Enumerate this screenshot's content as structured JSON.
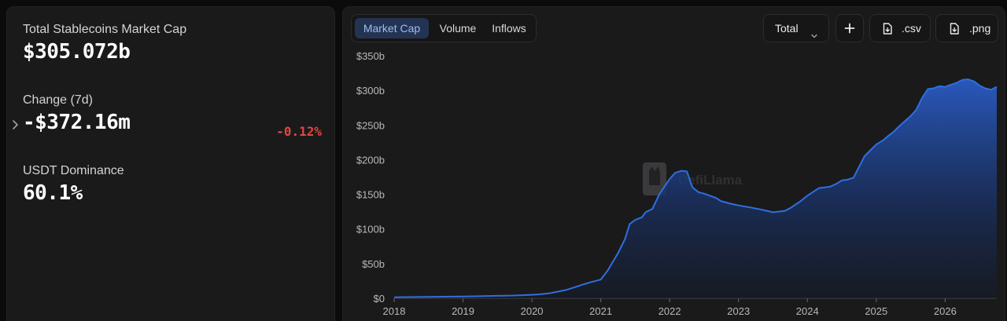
{
  "stats": {
    "total": {
      "label": "Total Stablecoins Market Cap",
      "value": "$305.072b"
    },
    "change": {
      "label": "Change (7d)",
      "value": "-$372.16m",
      "percent": "-0.12%"
    },
    "dominance": {
      "label": "USDT Dominance",
      "value": "60.1%"
    }
  },
  "tabs": {
    "market_cap": "Market Cap",
    "volume": "Volume",
    "inflows": "Inflows"
  },
  "toolbar": {
    "total_label": "Total",
    "csv_label": ".csv",
    "png_label": ".png"
  },
  "watermark": "DefiLlama",
  "colors": {
    "accent": "#2f6fe0",
    "negative": "#e0483e",
    "panel": "#1a1a1b"
  },
  "icons": {
    "chevron": "chevron-right-icon",
    "select": "chevron-down-icon",
    "add": "plus-icon",
    "download": "file-download-icon"
  },
  "chart_data": {
    "type": "area",
    "y_ticks": [
      "$0",
      "$50b",
      "$100b",
      "$150b",
      "$200b",
      "$250b",
      "$300b",
      "$350b"
    ],
    "x_ticks": [
      "2018",
      "2019",
      "2020",
      "2021",
      "2022",
      "2023",
      "2024",
      "2025",
      "2026"
    ],
    "ylim": [
      0,
      350
    ],
    "xlim": [
      2018.0,
      2026.75
    ],
    "grid": false,
    "series": [
      {
        "x": [
          2018.0,
          2018.5,
          2019.0,
          2019.25,
          2019.5,
          2019.75,
          2020.0,
          2020.1,
          2020.25,
          2020.5,
          2020.75,
          2020.85,
          2021.0,
          2021.1,
          2021.25,
          2021.35,
          2021.42,
          2021.5,
          2021.6,
          2021.65,
          2021.75,
          2021.85,
          2022.0,
          2022.08,
          2022.17,
          2022.25,
          2022.33,
          2022.42,
          2022.5,
          2022.67,
          2022.75,
          2022.9,
          2023.0,
          2023.17,
          2023.33,
          2023.5,
          2023.58,
          2023.67,
          2023.75,
          2023.9,
          2024.0,
          2024.17,
          2024.33,
          2024.42,
          2024.5,
          2024.58,
          2024.67,
          2024.83,
          2025.0,
          2025.1,
          2025.17,
          2025.25,
          2025.33,
          2025.42,
          2025.5,
          2025.58,
          2025.67,
          2025.75,
          2025.83,
          2025.92,
          2026.0,
          2026.08,
          2026.17,
          2026.25,
          2026.33,
          2026.42,
          2026.5,
          2026.58,
          2026.67,
          2026.75
        ],
        "y": [
          1.5,
          2,
          2.5,
          3,
          3.5,
          4,
          5,
          5.5,
          7,
          12,
          20,
          23,
          27,
          40,
          65,
          85,
          107,
          113,
          117,
          124,
          129,
          150,
          172,
          181,
          184,
          183,
          160,
          153,
          151,
          145,
          140,
          136,
          134,
          131,
          128,
          124,
          125,
          126,
          130,
          140,
          148,
          159,
          161,
          165,
          170,
          171,
          174,
          205,
          222,
          228,
          234,
          240,
          248,
          256,
          263,
          272,
          290,
          302,
          303,
          306,
          305,
          308,
          311,
          315,
          316,
          313,
          307,
          303,
          301,
          305
        ]
      }
    ]
  }
}
